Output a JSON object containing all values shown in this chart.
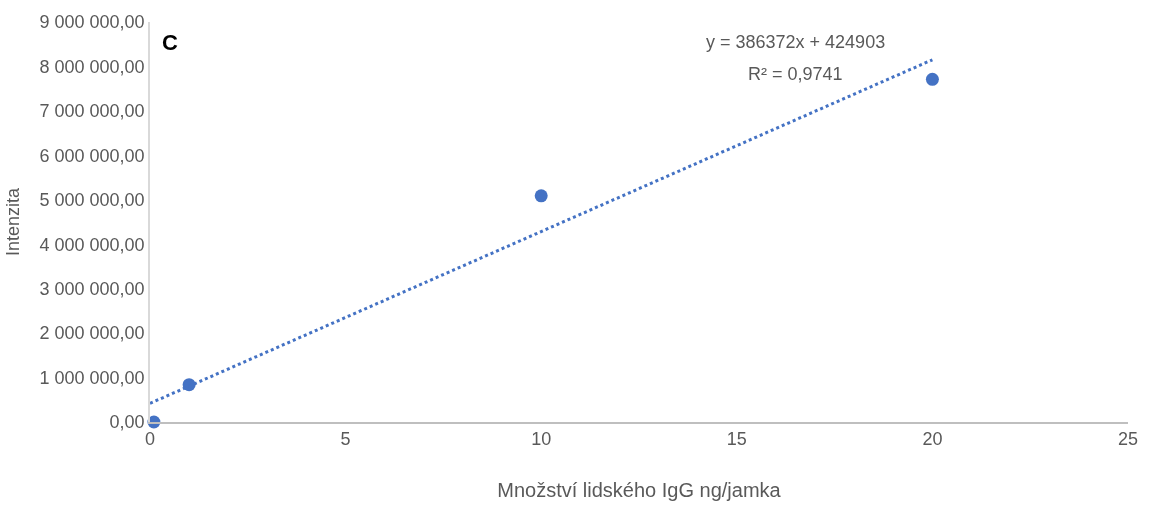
{
  "chart_data": {
    "type": "scatter",
    "xlabel": "Množství lidského IgG ng/jamka",
    "ylabel": "Intenzita",
    "annotations": [
      "C",
      "y = 386372x + 424903",
      "R² = 0,9741"
    ],
    "series": [
      {
        "color": "#4472c4",
        "x": [
          0.1,
          1,
          10,
          20
        ],
        "values": [
          0,
          840000,
          5090000,
          7710000
        ],
        "marker": "circle"
      },
      {
        "type": "line",
        "color": "#4472c4",
        "x": [
          0,
          20
        ],
        "values": [
          420000,
          8150000
        ],
        "line_style": "dotted",
        "marker": "none"
      }
    ],
    "xlim": [
      0,
      25
    ],
    "xticks": [
      0,
      5,
      10,
      15,
      20,
      25
    ],
    "ylim": [
      0,
      9000000
    ],
    "yticks": [
      {
        "value": 0,
        "label": "0,00"
      },
      {
        "value": 1000000,
        "label": "1 000 000,00"
      },
      {
        "value": 2000000,
        "label": "2 000 000,00"
      },
      {
        "value": 3000000,
        "label": "3 000 000,00"
      },
      {
        "value": 4000000,
        "label": "4 000 000,00"
      },
      {
        "value": 5000000,
        "label": "5 000 000,00"
      },
      {
        "value": 6000000,
        "label": "6 000 000,00"
      },
      {
        "value": 7000000,
        "label": "7 000 000,00"
      },
      {
        "value": 8000000,
        "label": "8 000 000,00"
      },
      {
        "value": 9000000,
        "label": "9 000 000,00"
      }
    ]
  }
}
